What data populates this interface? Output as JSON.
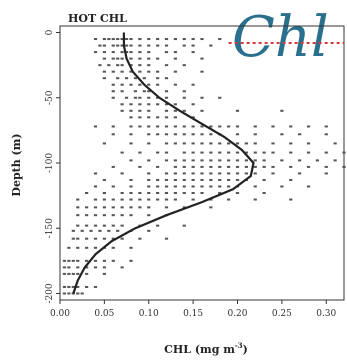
{
  "chart_data": {
    "type": "scatter",
    "title": "HOT CHL",
    "watermark": "Chl",
    "xlabel": "CHL (mg m",
    "xlabel_sup": "-3",
    "xlabel_close": ")",
    "ylabel": "Depth (m)",
    "xlim": [
      0.0,
      0.32
    ],
    "ylim": [
      -205,
      5
    ],
    "x_ticks": [
      0.0,
      0.05,
      0.1,
      0.15,
      0.2,
      0.25,
      0.3
    ],
    "x_tick_labels": [
      "0.00",
      "0.05",
      "0.10",
      "0.15",
      "0.20",
      "0.25",
      "0.30"
    ],
    "y_ticks": [
      0,
      -50,
      -100,
      -150,
      -200
    ],
    "y_tick_labels": [
      "0",
      "-50",
      "-100",
      "-150",
      "-200"
    ],
    "grid": false,
    "series": [
      {
        "kind": "points",
        "color": "#555555",
        "rows": [
          {
            "depth": -5,
            "x": [
              0.04,
              0.05,
              0.055,
              0.06,
              0.065,
              0.07,
              0.075,
              0.08,
              0.09,
              0.1,
              0.11,
              0.12,
              0.13,
              0.14,
              0.15,
              0.16,
              0.18
            ]
          },
          {
            "depth": -10,
            "x": [
              0.045,
              0.05,
              0.06,
              0.065,
              0.07,
              0.075,
              0.08,
              0.09,
              0.1,
              0.11,
              0.12,
              0.14,
              0.15,
              0.17
            ]
          },
          {
            "depth": -15,
            "x": [
              0.04,
              0.05,
              0.06,
              0.07,
              0.075,
              0.08,
              0.09,
              0.1,
              0.12,
              0.13,
              0.15
            ]
          },
          {
            "depth": -20,
            "x": [
              0.05,
              0.06,
              0.065,
              0.07,
              0.08,
              0.09,
              0.1,
              0.11,
              0.13,
              0.16
            ]
          },
          {
            "depth": -25,
            "x": [
              0.045,
              0.055,
              0.065,
              0.07,
              0.08,
              0.09,
              0.1,
              0.12,
              0.14
            ]
          },
          {
            "depth": -30,
            "x": [
              0.05,
              0.06,
              0.07,
              0.08,
              0.09,
              0.1,
              0.11,
              0.13,
              0.16
            ]
          },
          {
            "depth": -35,
            "x": [
              0.05,
              0.065,
              0.075,
              0.085,
              0.095,
              0.11,
              0.12
            ]
          },
          {
            "depth": -40,
            "x": [
              0.06,
              0.07,
              0.08,
              0.09,
              0.1,
              0.11,
              0.13,
              0.15
            ]
          },
          {
            "depth": -45,
            "x": [
              0.06,
              0.07,
              0.085,
              0.095,
              0.1,
              0.12,
              0.14
            ]
          },
          {
            "depth": -50,
            "x": [
              0.06,
              0.075,
              0.085,
              0.09,
              0.1,
              0.11,
              0.12,
              0.14,
              0.16,
              0.18
            ]
          },
          {
            "depth": -55,
            "x": [
              0.07,
              0.08,
              0.09,
              0.1,
              0.11,
              0.12,
              0.13,
              0.15
            ]
          },
          {
            "depth": -60,
            "x": [
              0.07,
              0.08,
              0.09,
              0.1,
              0.12,
              0.13,
              0.14,
              0.16,
              0.2,
              0.25
            ]
          },
          {
            "depth": -65,
            "x": [
              0.08,
              0.09,
              0.1,
              0.11,
              0.12,
              0.13,
              0.15
            ]
          },
          {
            "depth": -72,
            "x": [
              0.04,
              0.06,
              0.08,
              0.09,
              0.1,
              0.11,
              0.12,
              0.13,
              0.14,
              0.15,
              0.16,
              0.17,
              0.18,
              0.19,
              0.2,
              0.22,
              0.24,
              0.26,
              0.28,
              0.3
            ]
          },
          {
            "depth": -78,
            "x": [
              0.06,
              0.08,
              0.1,
              0.11,
              0.12,
              0.13,
              0.14,
              0.15,
              0.16,
              0.17,
              0.18,
              0.2,
              0.22,
              0.25,
              0.27,
              0.3
            ]
          },
          {
            "depth": -85,
            "x": [
              0.05,
              0.08,
              0.1,
              0.12,
              0.13,
              0.14,
              0.15,
              0.16,
              0.17,
              0.18,
              0.19,
              0.2,
              0.21,
              0.22,
              0.24,
              0.26,
              0.28,
              0.31
            ]
          },
          {
            "depth": -92,
            "x": [
              0.07,
              0.09,
              0.11,
              0.12,
              0.14,
              0.15,
              0.16,
              0.17,
              0.18,
              0.19,
              0.2,
              0.21,
              0.22,
              0.23,
              0.24,
              0.26,
              0.28,
              0.3,
              0.32
            ]
          },
          {
            "depth": -98,
            "x": [
              0.08,
              0.1,
              0.12,
              0.13,
              0.14,
              0.15,
              0.16,
              0.17,
              0.18,
              0.19,
              0.2,
              0.21,
              0.22,
              0.23,
              0.25,
              0.27,
              0.29,
              0.31
            ]
          },
          {
            "depth": -103,
            "x": [
              0.06,
              0.09,
              0.11,
              0.13,
              0.14,
              0.15,
              0.16,
              0.17,
              0.18,
              0.19,
              0.2,
              0.21,
              0.22,
              0.23,
              0.24,
              0.26,
              0.28,
              0.3,
              0.32
            ]
          },
          {
            "depth": -108,
            "x": [
              0.04,
              0.07,
              0.1,
              0.12,
              0.13,
              0.14,
              0.15,
              0.16,
              0.17,
              0.18,
              0.19,
              0.2,
              0.21,
              0.22,
              0.24,
              0.27,
              0.3
            ]
          },
          {
            "depth": -113,
            "x": [
              0.05,
              0.08,
              0.1,
              0.11,
              0.12,
              0.13,
              0.14,
              0.15,
              0.16,
              0.17,
              0.18,
              0.19,
              0.2,
              0.21,
              0.23,
              0.26
            ]
          },
          {
            "depth": -118,
            "x": [
              0.04,
              0.06,
              0.08,
              0.1,
              0.11,
              0.12,
              0.13,
              0.14,
              0.15,
              0.16,
              0.17,
              0.18,
              0.19,
              0.2,
              0.22,
              0.25,
              0.28
            ]
          },
          {
            "depth": -123,
            "x": [
              0.03,
              0.05,
              0.07,
              0.08,
              0.09,
              0.1,
              0.11,
              0.12,
              0.13,
              0.14,
              0.15,
              0.16,
              0.18,
              0.2,
              0.23
            ]
          },
          {
            "depth": -128,
            "x": [
              0.02,
              0.04,
              0.05,
              0.06,
              0.07,
              0.08,
              0.09,
              0.1,
              0.11,
              0.12,
              0.13,
              0.15,
              0.17,
              0.19,
              0.22,
              0.26
            ]
          },
          {
            "depth": -134,
            "x": [
              0.02,
              0.03,
              0.04,
              0.05,
              0.06,
              0.07,
              0.08,
              0.09,
              0.1,
              0.12,
              0.14,
              0.17
            ]
          },
          {
            "depth": -140,
            "x": [
              0.02,
              0.03,
              0.04,
              0.05,
              0.06,
              0.07,
              0.08,
              0.1,
              0.12
            ]
          },
          {
            "depth": -148,
            "x": [
              0.02,
              0.03,
              0.04,
              0.05,
              0.06,
              0.07,
              0.09,
              0.11,
              0.14
            ]
          },
          {
            "depth": -152,
            "x": [
              0.015,
              0.025,
              0.035,
              0.045,
              0.055,
              0.065,
              0.08,
              0.1
            ]
          },
          {
            "depth": -158,
            "x": [
              0.015,
              0.02,
              0.03,
              0.04,
              0.05,
              0.06,
              0.07,
              0.09,
              0.12
            ]
          },
          {
            "depth": -165,
            "x": [
              0.01,
              0.02,
              0.03,
              0.04,
              0.05,
              0.06,
              0.08
            ]
          },
          {
            "depth": -175,
            "x": [
              0.005,
              0.01,
              0.015,
              0.02,
              0.03,
              0.04,
              0.05,
              0.06,
              0.08
            ]
          },
          {
            "depth": -180,
            "x": [
              0.005,
              0.01,
              0.02,
              0.03,
              0.04,
              0.05,
              0.07
            ]
          },
          {
            "depth": -185,
            "x": [
              0.005,
              0.01,
              0.015,
              0.02,
              0.03,
              0.05
            ]
          },
          {
            "depth": -195,
            "x": [
              0.005,
              0.01,
              0.015,
              0.02,
              0.03,
              0.04
            ]
          },
          {
            "depth": -200,
            "x": [
              0.005,
              0.01,
              0.015,
              0.02,
              0.025
            ]
          }
        ]
      },
      {
        "kind": "line",
        "color": "#222222",
        "points": [
          {
            "x": 0.072,
            "y": 0
          },
          {
            "x": 0.072,
            "y": -10
          },
          {
            "x": 0.075,
            "y": -20
          },
          {
            "x": 0.082,
            "y": -30
          },
          {
            "x": 0.095,
            "y": -40
          },
          {
            "x": 0.112,
            "y": -50
          },
          {
            "x": 0.135,
            "y": -60
          },
          {
            "x": 0.16,
            "y": -70
          },
          {
            "x": 0.185,
            "y": -80
          },
          {
            "x": 0.205,
            "y": -90
          },
          {
            "x": 0.218,
            "y": -100
          },
          {
            "x": 0.215,
            "y": -110
          },
          {
            "x": 0.195,
            "y": -120
          },
          {
            "x": 0.16,
            "y": -130
          },
          {
            "x": 0.12,
            "y": -140
          },
          {
            "x": 0.085,
            "y": -150
          },
          {
            "x": 0.058,
            "y": -160
          },
          {
            "x": 0.04,
            "y": -170
          },
          {
            "x": 0.028,
            "y": -180
          },
          {
            "x": 0.02,
            "y": -190
          },
          {
            "x": 0.015,
            "y": -200
          }
        ]
      }
    ],
    "annotations": {
      "dashed_line_color": "#d23b3b",
      "dashed_line": {
        "x_start": 0.19,
        "x_end": 0.32,
        "y": -8
      }
    }
  }
}
